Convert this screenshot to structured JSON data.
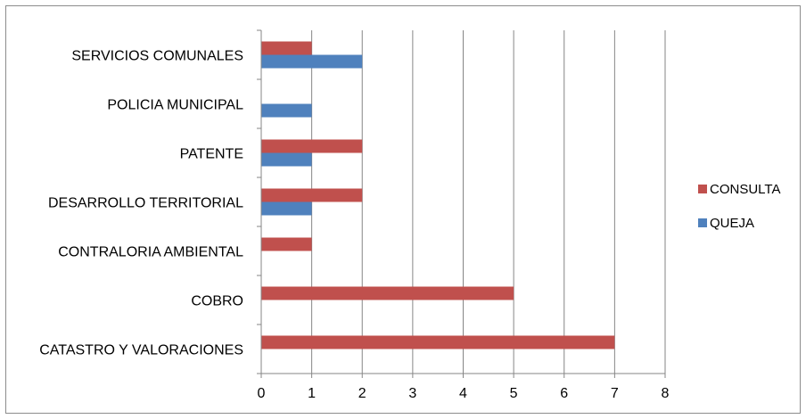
{
  "chart_data": {
    "type": "bar",
    "orientation": "horizontal",
    "categories": [
      "SERVICIOS COMUNALES",
      "POLICIA MUNICIPAL",
      "PATENTE",
      "DESARROLLO TERRITORIAL",
      "CONTRALORIA  AMBIENTAL",
      "COBRO",
      "CATASTRO Y VALORACIONES"
    ],
    "series": [
      {
        "name": "CONSULTA",
        "color": "#C0504D",
        "values": [
          1,
          0,
          2,
          2,
          1,
          5,
          7
        ]
      },
      {
        "name": "QUEJA",
        "color": "#4F81BD",
        "values": [
          2,
          1,
          1,
          1,
          0,
          0,
          0
        ]
      }
    ],
    "xlim": [
      0,
      8
    ],
    "xticks": [
      "0",
      "1",
      "2",
      "3",
      "4",
      "5",
      "6",
      "7",
      "8"
    ],
    "grid": "vertical",
    "legend_position": "right"
  }
}
